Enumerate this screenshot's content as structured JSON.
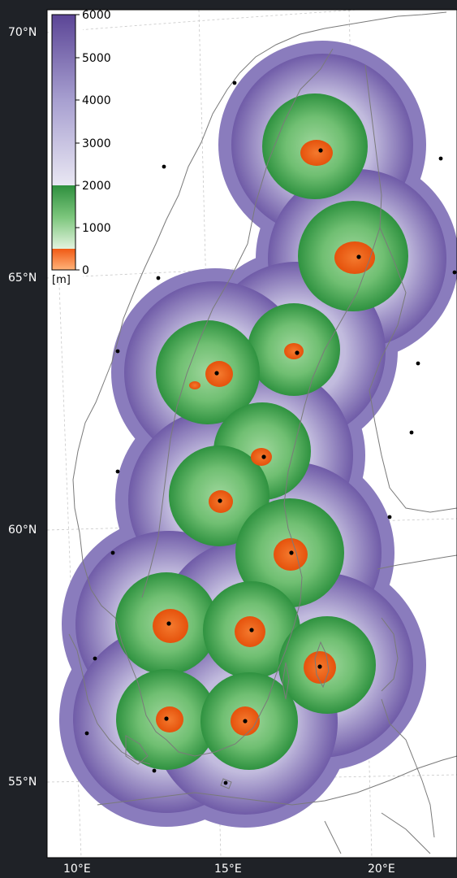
{
  "colorbar": {
    "unit": "[m]",
    "ticks": [
      "6000",
      "5000",
      "4000",
      "3000",
      "2000",
      "1000",
      "0"
    ],
    "range": [
      0,
      6000
    ],
    "stops": [
      {
        "value": 0,
        "color": "#ffb27a"
      },
      {
        "value": 600,
        "color": "#f05a14"
      },
      {
        "value": 600,
        "color": "#bfe6bd"
      },
      {
        "value": 2000,
        "color": "#3e9e46"
      },
      {
        "value": 2000,
        "color": "#e6e4f1"
      },
      {
        "value": 6000,
        "color": "#5b4596"
      }
    ]
  },
  "axes": {
    "lat_labels": [
      "70°N",
      "65°N",
      "60°N",
      "55°N"
    ],
    "lon_labels": [
      "10°E",
      "15°E",
      "20°E"
    ]
  },
  "colors": {
    "background": "#1f2227",
    "map_bg": "#ffffff",
    "coverage_far": "#5b4596",
    "coverage_mid": "#3e9e46",
    "coverage_near": "#f05a14",
    "coastline": "#7a7a7a",
    "grid": "#c8c8c8"
  },
  "radars": [
    {
      "id": "r1",
      "lon": 18.1,
      "lat": 67.8
    },
    {
      "id": "r2",
      "lon": 19.4,
      "lat": 65.5
    },
    {
      "id": "r3",
      "lon": 17.2,
      "lat": 63.6
    },
    {
      "id": "r4",
      "lon": 14.6,
      "lat": 63.2
    },
    {
      "id": "r5",
      "lon": 16.0,
      "lat": 61.5
    },
    {
      "id": "r6",
      "lon": 14.1,
      "lat": 60.6
    },
    {
      "id": "r7",
      "lon": 16.9,
      "lat": 59.5
    },
    {
      "id": "r8",
      "lon": 12.7,
      "lat": 58.1
    },
    {
      "id": "r9",
      "lon": 15.3,
      "lat": 58.0
    },
    {
      "id": "r10",
      "lon": 18.3,
      "lat": 57.3
    },
    {
      "id": "r11",
      "lon": 12.8,
      "lat": 56.4
    },
    {
      "id": "r12",
      "lon": 15.2,
      "lat": 56.3
    }
  ],
  "sites": [
    {
      "id": "s1",
      "lon": 11.3,
      "lat": 69.3
    },
    {
      "id": "s2",
      "lon": 9.9,
      "lat": 67.3
    },
    {
      "id": "s3",
      "lon": 22.6,
      "lat": 67.5
    },
    {
      "id": "s4",
      "lon": 10.0,
      "lat": 65.0
    },
    {
      "id": "s5",
      "lon": 23.5,
      "lat": 65.1
    },
    {
      "id": "s6",
      "lon": 8.8,
      "lat": 63.7
    },
    {
      "id": "s7",
      "lon": 22.4,
      "lat": 63.5
    },
    {
      "id": "s8",
      "lon": 22.0,
      "lat": 62.2
    },
    {
      "id": "s9",
      "lon": 8.8,
      "lat": 61.2
    },
    {
      "id": "s10",
      "lon": 20.5,
      "lat": 60.3
    },
    {
      "id": "s11",
      "lon": 8.8,
      "lat": 59.8
    },
    {
      "id": "s12",
      "lon": 9.0,
      "lat": 57.5
    },
    {
      "id": "s13",
      "lon": 8.6,
      "lat": 56.5
    },
    {
      "id": "s14",
      "lon": 12.4,
      "lat": 55.4
    },
    {
      "id": "s15",
      "lon": 14.8,
      "lat": 55.2
    }
  ]
}
